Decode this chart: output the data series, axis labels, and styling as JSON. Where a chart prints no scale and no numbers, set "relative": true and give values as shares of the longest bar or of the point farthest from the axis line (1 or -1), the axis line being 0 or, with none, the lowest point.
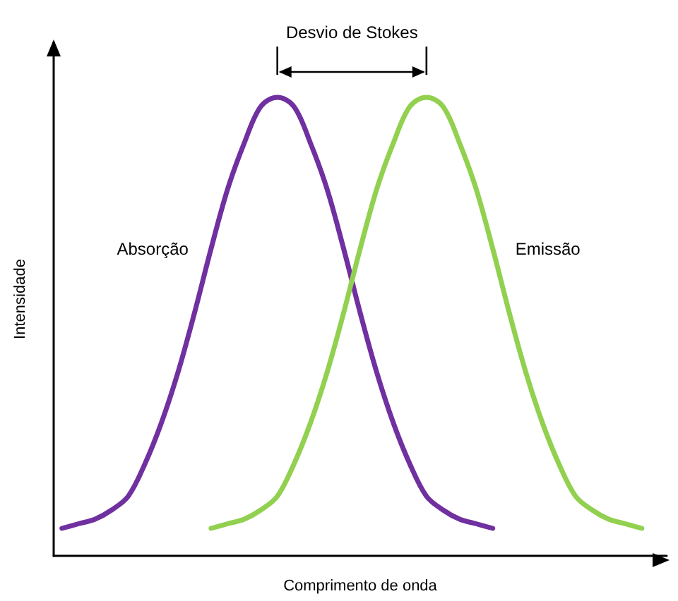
{
  "chart_data": {
    "type": "line",
    "relative": true,
    "xlabel": "Comprimento de onda",
    "ylabel": "Intensidade",
    "annotations": [
      "Desvio de Stokes"
    ],
    "grid": false,
    "legend": false,
    "marker": "none",
    "line_style": "solid",
    "categories": [
      null,
      null,
      null,
      null,
      null,
      null,
      null,
      null,
      null,
      null,
      null,
      null,
      null,
      null,
      null,
      null,
      null,
      null,
      null,
      null,
      null,
      null,
      null,
      null,
      null,
      null,
      null,
      null,
      null,
      null,
      null,
      null,
      null,
      null,
      null,
      null,
      null
    ],
    "series": [
      {
        "name": "Absorção",
        "color": "#7030a0",
        "values": [
          0.06,
          0.07,
          0.08,
          0.1,
          0.13,
          0.2,
          0.29,
          0.4,
          0.53,
          0.67,
          0.8,
          0.9,
          0.98,
          1,
          0.98,
          0.9,
          0.8,
          0.67,
          0.53,
          0.4,
          0.29,
          0.2,
          0.13,
          0.1,
          0.08,
          0.07,
          0.06,
          null,
          null,
          null,
          null,
          null,
          null,
          null,
          null,
          null,
          null
        ]
      },
      {
        "name": "Emissão",
        "color": "#92d050",
        "values": [
          null,
          null,
          null,
          null,
          null,
          null,
          null,
          null,
          null,
          0.06,
          0.07,
          0.08,
          0.1,
          0.13,
          0.2,
          0.29,
          0.4,
          0.53,
          0.67,
          0.8,
          0.9,
          0.98,
          1,
          0.98,
          0.9,
          0.8,
          0.67,
          0.53,
          0.4,
          0.29,
          0.2,
          0.13,
          0.1,
          0.08,
          0.07,
          0.06,
          null
        ]
      }
    ]
  }
}
